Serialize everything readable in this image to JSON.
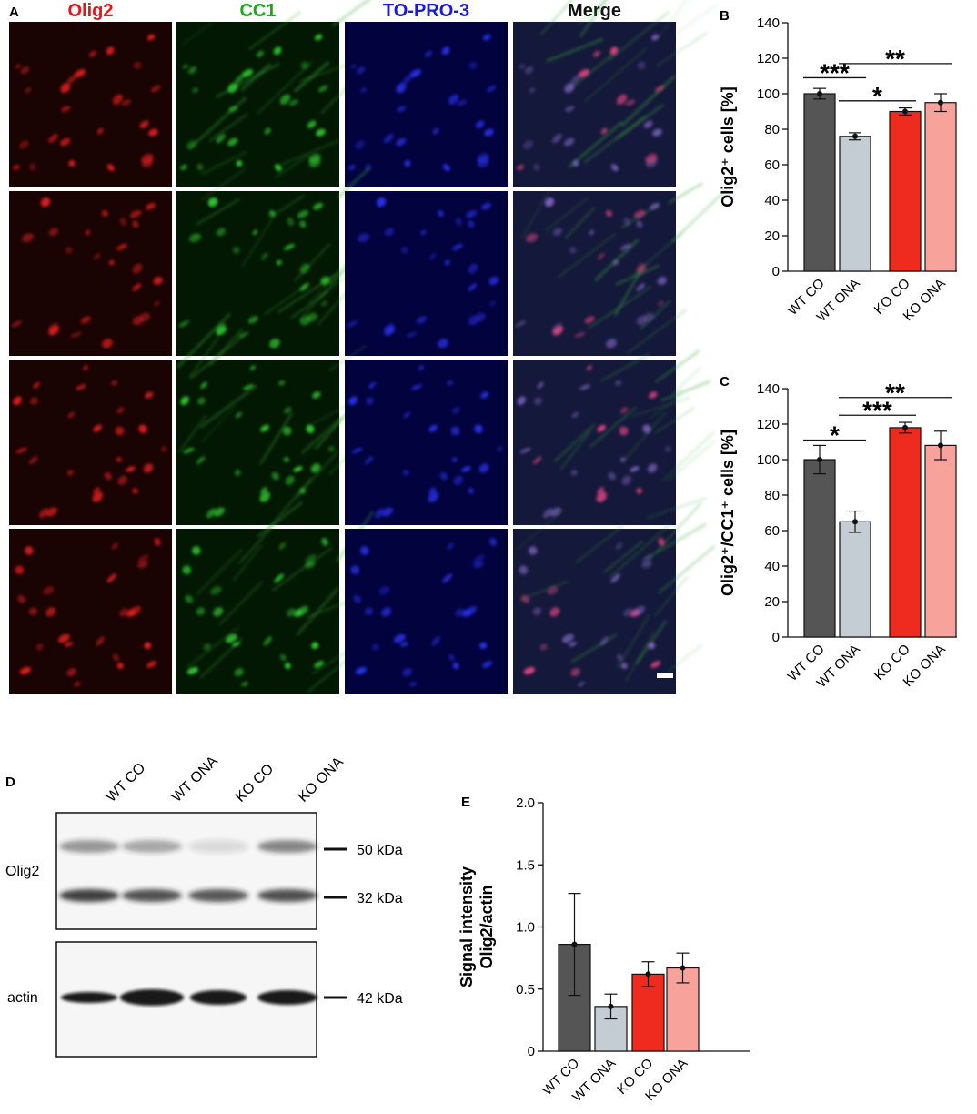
{
  "panel_a": {
    "letter": "A",
    "channels": [
      {
        "name": "Olig2",
        "color": "#e8141b",
        "rgb": [
          230,
          30,
          30
        ],
        "bg": "#1a0303"
      },
      {
        "name": "CC1",
        "color": "#1aa81a",
        "rgb": [
          50,
          200,
          50
        ],
        "bg": "#031803"
      },
      {
        "name": "TO-PRO-3",
        "color": "#1b1bd6",
        "rgb": [
          40,
          50,
          235
        ],
        "bg": "#02023e"
      },
      {
        "name": "Merge",
        "color": "#111111",
        "rgb": [
          200,
          110,
          200
        ],
        "bg": "#14183a"
      }
    ]
  },
  "chart_data": [
    {
      "panel": "B",
      "type": "bar",
      "categories": [
        "WT CO",
        "WT ONA",
        "KO CO",
        "KO ONA"
      ],
      "values": [
        100,
        76,
        90,
        95
      ],
      "errors": [
        3,
        2,
        2,
        5
      ],
      "colors": [
        "#555555",
        "#c3cdd3",
        "#ef2a1e",
        "#f7a39b"
      ],
      "ylabel": "Olig2⁺ cells [%]",
      "ylim": [
        0,
        140
      ],
      "yticks": [
        0,
        20,
        40,
        60,
        80,
        100,
        120,
        140
      ],
      "significance": [
        {
          "from": 0,
          "to": 1,
          "y": 109,
          "label": "***"
        },
        {
          "from": 1,
          "to": 2,
          "y": 96,
          "label": "*"
        },
        {
          "from": 1,
          "to": 3,
          "y": 117,
          "label": "**"
        }
      ]
    },
    {
      "panel": "C",
      "type": "bar",
      "categories": [
        "WT CO",
        "WT ONA",
        "KO CO",
        "KO ONA"
      ],
      "values": [
        100,
        65,
        118,
        108
      ],
      "errors": [
        8,
        6,
        3,
        8
      ],
      "colors": [
        "#555555",
        "#c3cdd3",
        "#ef2a1e",
        "#f7a39b"
      ],
      "ylabel": "Olig2⁺/CC1⁺ cells [%]",
      "ylim": [
        0,
        140
      ],
      "yticks": [
        0,
        20,
        40,
        60,
        80,
        100,
        120,
        140
      ],
      "significance": [
        {
          "from": 0,
          "to": 1,
          "y": 111,
          "label": "*"
        },
        {
          "from": 1,
          "to": 2,
          "y": 125,
          "label": "***"
        },
        {
          "from": 1,
          "to": 3,
          "y": 135,
          "label": "**"
        }
      ]
    },
    {
      "panel": "E",
      "type": "bar",
      "categories": [
        "WT CO",
        "WT ONA",
        "KO CO",
        "KO ONA"
      ],
      "values": [
        0.86,
        0.36,
        0.62,
        0.67
      ],
      "errors": [
        0.41,
        0.1,
        0.1,
        0.12
      ],
      "colors": [
        "#555555",
        "#c3cdd3",
        "#ef2a1e",
        "#f7a39b"
      ],
      "ylabel": "Signal intensity\nOlig2/actin",
      "ylim": [
        0,
        2.0
      ],
      "yticks": [
        0,
        0.5,
        1.0,
        1.5,
        2.0
      ],
      "ytick_labels": [
        "0",
        "0.5",
        "1.0",
        "1.5",
        "2.0"
      ],
      "significance": []
    }
  ],
  "panel_d": {
    "letter": "D",
    "lanes": [
      "WT CO",
      "WT ONA",
      "KO CO",
      "KO ONA"
    ],
    "olig2_label": "Olig2",
    "actin_label": "actin",
    "markers": [
      "50 kDa",
      "32 kDa",
      "42 kDa"
    ]
  }
}
